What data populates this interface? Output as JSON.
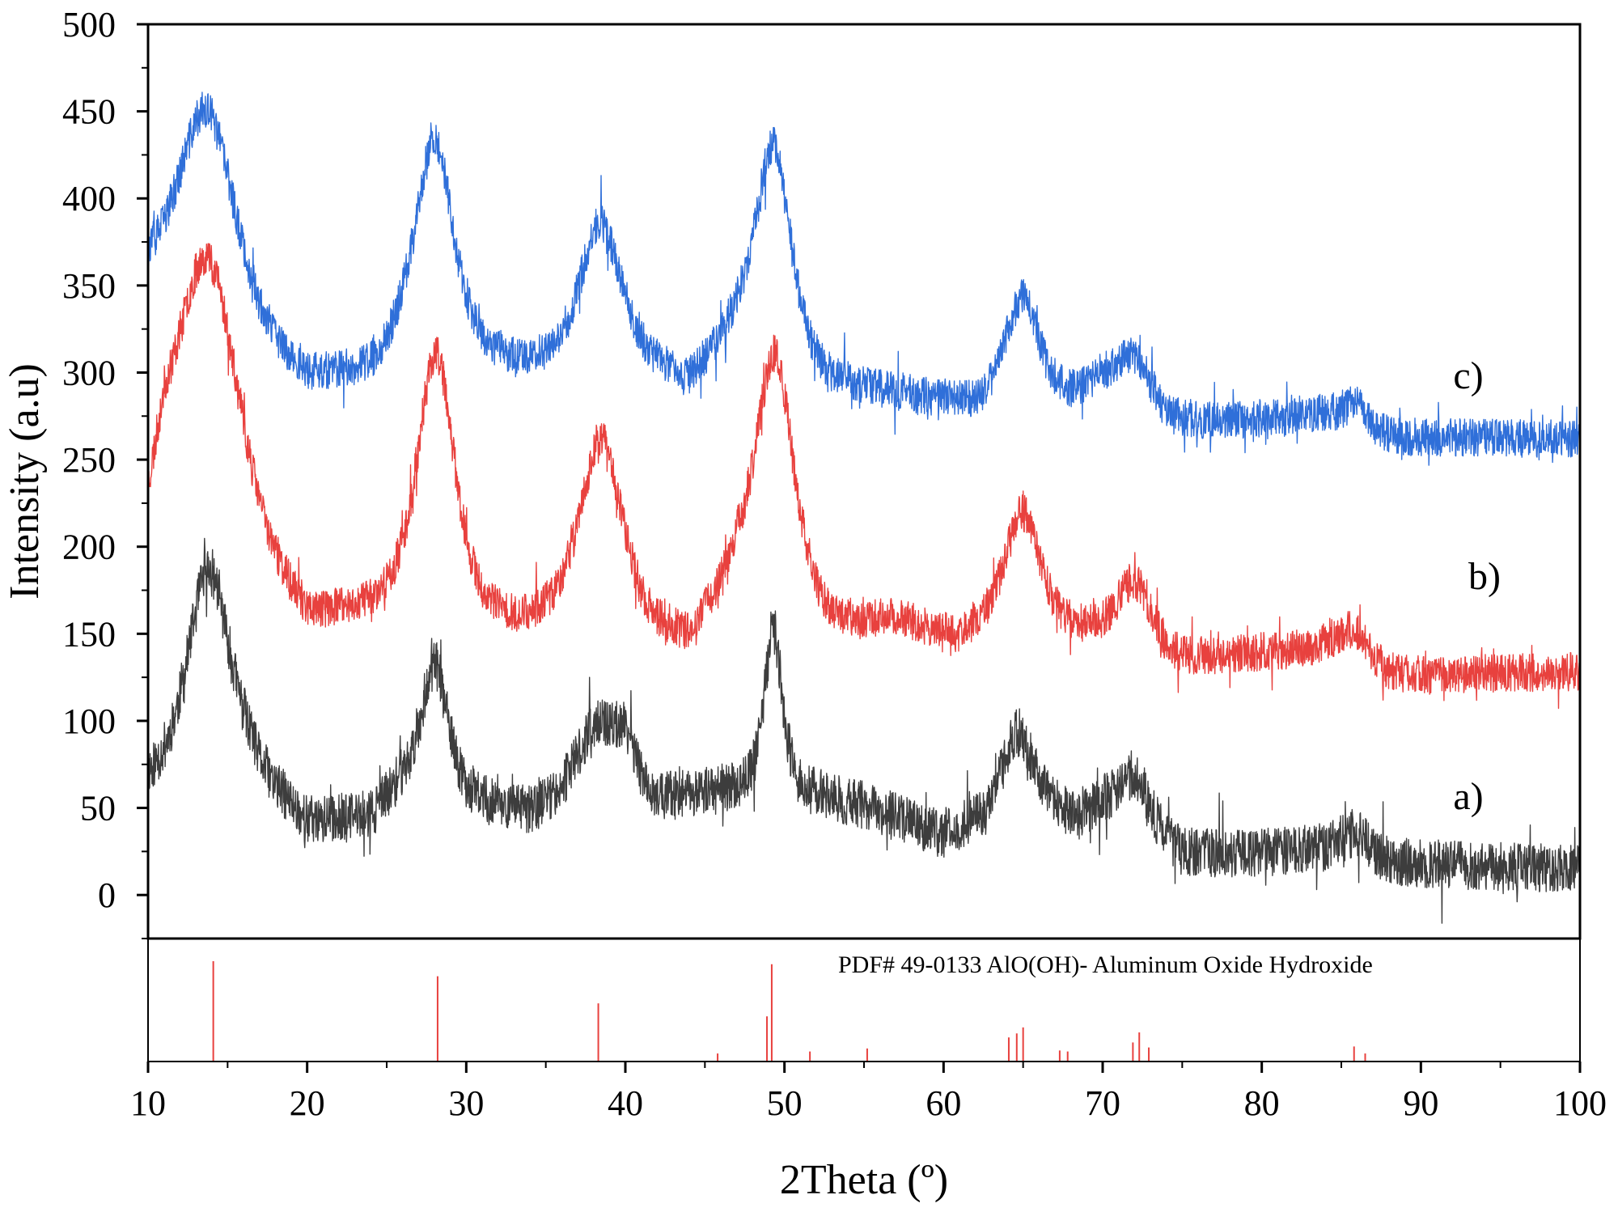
{
  "chart_data": {
    "type": "line",
    "title": "",
    "xlabel": "2Theta (º)",
    "ylabel": "Intensity (a.u)",
    "xlim": [
      10,
      100
    ],
    "ylim": [
      -25,
      500
    ],
    "x_ticks": [
      10,
      20,
      30,
      40,
      50,
      60,
      70,
      80,
      90,
      100
    ],
    "x_tick_labels": [
      "10",
      "20",
      "30",
      "40",
      "50",
      "60",
      "70",
      "80",
      "90",
      "100"
    ],
    "y_ticks": [
      0,
      50,
      100,
      150,
      200,
      250,
      300,
      350,
      400,
      450,
      500
    ],
    "y_tick_labels": [
      "0",
      "50",
      "100",
      "150",
      "200",
      "250",
      "300",
      "350",
      "400",
      "450",
      "500"
    ],
    "series": [
      {
        "name": "a)",
        "label": "a)",
        "color": "#3d3d3d",
        "noise": 14,
        "seed": 11,
        "baseline": [
          [
            10,
            60
          ],
          [
            16,
            70
          ],
          [
            20,
            38
          ],
          [
            24,
            42
          ],
          [
            26,
            60
          ],
          [
            34,
            45
          ],
          [
            37,
            62
          ],
          [
            42,
            52
          ],
          [
            46,
            58
          ],
          [
            52,
            55
          ],
          [
            55,
            50
          ],
          [
            60,
            33
          ],
          [
            66,
            52
          ],
          [
            68,
            42
          ],
          [
            70,
            48
          ],
          [
            75,
            22
          ],
          [
            85,
            26
          ],
          [
            88,
            18
          ],
          [
            100,
            15
          ]
        ],
        "peaks": [
          {
            "x": 13.8,
            "h": 120,
            "w": 1.6
          },
          {
            "x": 28.0,
            "h": 75,
            "w": 1.0
          },
          {
            "x": 38.3,
            "h": 35,
            "w": 1.2
          },
          {
            "x": 40.0,
            "h": 30,
            "w": 0.8
          },
          {
            "x": 49.3,
            "h": 95,
            "w": 0.7
          },
          {
            "x": 64.6,
            "h": 45,
            "w": 1.1
          },
          {
            "x": 72.0,
            "h": 30,
            "w": 1.2
          },
          {
            "x": 86.0,
            "h": 12,
            "w": 1.0
          }
        ]
      },
      {
        "name": "b)",
        "label": "b)",
        "color": "#e8413e",
        "noise": 11,
        "seed": 23,
        "baseline": [
          [
            10,
            200
          ],
          [
            11,
            230
          ],
          [
            20,
            150
          ],
          [
            26,
            160
          ],
          [
            33,
            148
          ],
          [
            36,
            152
          ],
          [
            44,
            140
          ],
          [
            47,
            180
          ],
          [
            53,
            150
          ],
          [
            57,
            155
          ],
          [
            61,
            145
          ],
          [
            64,
            160
          ],
          [
            68,
            150
          ],
          [
            74,
            132
          ],
          [
            80,
            138
          ],
          [
            84,
            140
          ],
          [
            88,
            125
          ],
          [
            100,
            128
          ]
        ],
        "peaks": [
          {
            "x": 13.8,
            "h": 160,
            "w": 2.3
          },
          {
            "x": 28.1,
            "h": 150,
            "w": 1.4
          },
          {
            "x": 38.5,
            "h": 110,
            "w": 1.6
          },
          {
            "x": 49.4,
            "h": 140,
            "w": 1.4
          },
          {
            "x": 65.0,
            "h": 60,
            "w": 1.2
          },
          {
            "x": 72.0,
            "h": 40,
            "w": 1.4
          },
          {
            "x": 85.8,
            "h": 18,
            "w": 1.2
          }
        ]
      },
      {
        "name": "c)",
        "label": "c)",
        "color": "#2f6fd9",
        "noise": 11,
        "seed": 37,
        "baseline": [
          [
            10,
            345
          ],
          [
            20,
            290
          ],
          [
            24,
            295
          ],
          [
            26,
            310
          ],
          [
            33,
            300
          ],
          [
            36,
            300
          ],
          [
            40,
            305
          ],
          [
            44,
            290
          ],
          [
            47,
            320
          ],
          [
            53,
            290
          ],
          [
            58,
            285
          ],
          [
            62,
            280
          ],
          [
            64,
            292
          ],
          [
            68,
            285
          ],
          [
            70,
            292
          ],
          [
            74,
            270
          ],
          [
            80,
            272
          ],
          [
            84,
            275
          ],
          [
            88,
            262
          ],
          [
            100,
            262
          ]
        ],
        "peaks": [
          {
            "x": 13.7,
            "h": 125,
            "w": 2.2
          },
          {
            "x": 28.0,
            "h": 125,
            "w": 1.4
          },
          {
            "x": 38.4,
            "h": 80,
            "w": 1.5
          },
          {
            "x": 49.3,
            "h": 120,
            "w": 1.3
          },
          {
            "x": 65.0,
            "h": 52,
            "w": 1.1
          },
          {
            "x": 72.0,
            "h": 28,
            "w": 1.3
          },
          {
            "x": 85.9,
            "h": 12,
            "w": 1.0
          }
        ]
      }
    ],
    "reference_pattern": {
      "label": "PDF# 49-0133 AlO(OH)- Aluminum Oxide Hydroxide",
      "color": "#e8413e",
      "lines": [
        {
          "x": 14.1,
          "i": 100
        },
        {
          "x": 28.2,
          "i": 85
        },
        {
          "x": 38.3,
          "i": 58
        },
        {
          "x": 45.8,
          "i": 8
        },
        {
          "x": 48.9,
          "i": 45
        },
        {
          "x": 49.2,
          "i": 97
        },
        {
          "x": 51.6,
          "i": 10
        },
        {
          "x": 55.2,
          "i": 13
        },
        {
          "x": 64.1,
          "i": 24
        },
        {
          "x": 64.6,
          "i": 28
        },
        {
          "x": 65.0,
          "i": 34
        },
        {
          "x": 67.3,
          "i": 11
        },
        {
          "x": 67.8,
          "i": 10
        },
        {
          "x": 71.9,
          "i": 19
        },
        {
          "x": 72.3,
          "i": 29
        },
        {
          "x": 72.9,
          "i": 14
        },
        {
          "x": 85.8,
          "i": 15
        },
        {
          "x": 86.5,
          "i": 8
        }
      ]
    }
  }
}
